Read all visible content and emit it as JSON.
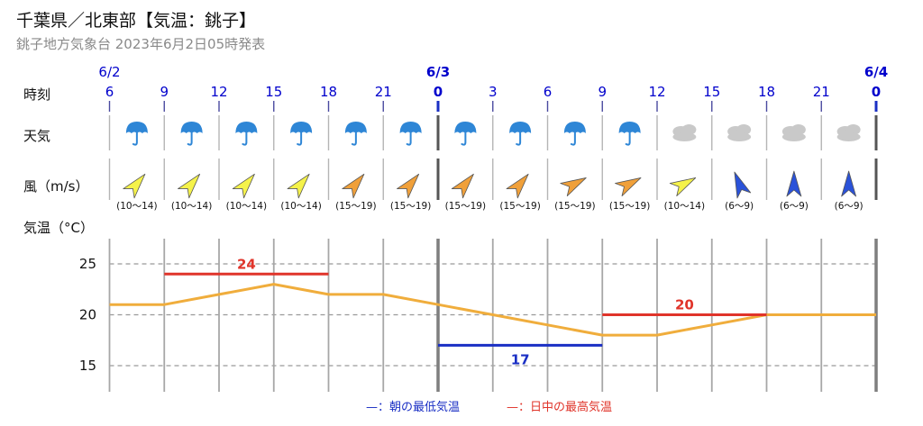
{
  "header": {
    "title": "千葉県／北東部【気温：銚子】",
    "subtitle": "銚子地方気象台 2023年6月2日05時発表"
  },
  "rows": {
    "time_label": "時刻",
    "weather_label": "天気",
    "wind_label": "風（m/s）",
    "temp_label": "気温（°C）"
  },
  "dates": [
    {
      "label": "6/2",
      "at_index": 0,
      "bold": false
    },
    {
      "label": "6/3",
      "at_index": 6,
      "bold": true
    },
    {
      "label": "6/4",
      "at_index": 14,
      "bold": true
    }
  ],
  "hours": [
    "6",
    "9",
    "12",
    "15",
    "18",
    "21",
    "0",
    "3",
    "6",
    "9",
    "12",
    "15",
    "18",
    "21",
    "0"
  ],
  "slots": [
    {
      "weather": "rain-icon",
      "wind_dir": "SW",
      "wind_level": "low",
      "wind_label": "(10〜14)"
    },
    {
      "weather": "rain-icon",
      "wind_dir": "SW",
      "wind_level": "low",
      "wind_label": "(10〜14)"
    },
    {
      "weather": "rain-icon",
      "wind_dir": "SW",
      "wind_level": "low",
      "wind_label": "(10〜14)"
    },
    {
      "weather": "rain-icon",
      "wind_dir": "SW",
      "wind_level": "low",
      "wind_label": "(10〜14)"
    },
    {
      "weather": "rain-icon",
      "wind_dir": "SW",
      "wind_level": "mid",
      "wind_label": "(15〜19)"
    },
    {
      "weather": "rain-icon",
      "wind_dir": "SW",
      "wind_level": "mid",
      "wind_label": "(15〜19)"
    },
    {
      "weather": "rain-icon",
      "wind_dir": "SW",
      "wind_level": "mid",
      "wind_label": "(15〜19)"
    },
    {
      "weather": "rain-icon",
      "wind_dir": "SW",
      "wind_level": "mid",
      "wind_label": "(15〜19)"
    },
    {
      "weather": "rain-icon",
      "wind_dir": "WSW",
      "wind_level": "mid",
      "wind_label": "(15〜19)"
    },
    {
      "weather": "rain-icon",
      "wind_dir": "WSW",
      "wind_level": "mid",
      "wind_label": "(15〜19)"
    },
    {
      "weather": "cloud-icon",
      "wind_dir": "WSW",
      "wind_level": "low",
      "wind_label": "(10〜14)"
    },
    {
      "weather": "cloud-icon",
      "wind_dir": "NNE",
      "wind_level": "weak",
      "wind_label": "(6〜9)"
    },
    {
      "weather": "cloud-icon",
      "wind_dir": "N",
      "wind_level": "weak",
      "wind_label": "(6〜9)"
    },
    {
      "weather": "cloud-icon",
      "wind_dir": "N",
      "wind_level": "weak",
      "wind_label": "(6〜9)"
    }
  ],
  "colors": {
    "weak": "#2a52d9",
    "low": "#f5f24a",
    "mid": "#f0a03a",
    "rain": "#2e86d6",
    "cloud": "#c9c9c9",
    "temp_line": "#f0ad3c",
    "max_line": "#e0342a",
    "min_line": "#1a2fc4",
    "grid": "#999999",
    "day_line": "#7f7f7f"
  },
  "legend": {
    "min_label": "—：朝の最低気温",
    "max_label": "—：日中の最高気温"
  },
  "chart_data": {
    "type": "line",
    "x": [
      "6",
      "9",
      "12",
      "15",
      "18",
      "21",
      "0",
      "3",
      "6",
      "9",
      "12",
      "15",
      "18",
      "21",
      "0"
    ],
    "series": [
      {
        "values": [
          21,
          21,
          22,
          23,
          22,
          22,
          21,
          20,
          19,
          18,
          18,
          19,
          20,
          20,
          20
        ]
      }
    ],
    "min_temp": {
      "label": "17",
      "value": 17,
      "from_index": 6,
      "to_index": 9
    },
    "max_temps": [
      {
        "label": "24",
        "value": 24,
        "from_index": 1,
        "to_index": 4
      },
      {
        "label": "20",
        "value": 20,
        "from_index": 9,
        "to_index": 12
      }
    ],
    "yticks": [
      "15",
      "20",
      "25"
    ],
    "ylim": [
      12.5,
      27
    ],
    "grid": true
  }
}
